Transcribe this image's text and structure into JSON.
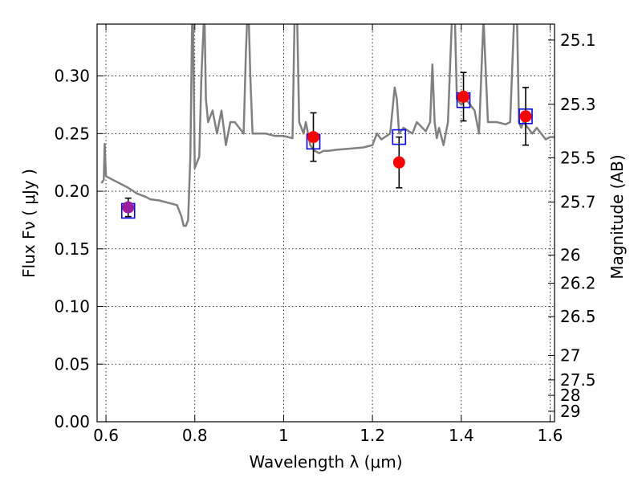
{
  "chart_data": {
    "type": "scatter",
    "xlabel": "Wavelength  λ (μm)",
    "ylabel": "Flux  Fν  ( μJy )",
    "y2label": "Magnitude (AB)",
    "xlim": [
      0.58,
      1.61
    ],
    "ylim": [
      0.0,
      0.345
    ],
    "grid": true,
    "x_ticks": [
      {
        "value": 0.6,
        "label": "0.6"
      },
      {
        "value": 0.8,
        "label": "0.8"
      },
      {
        "value": 1.0,
        "label": "1"
      },
      {
        "value": 1.2,
        "label": "1.2"
      },
      {
        "value": 1.4,
        "label": "1.4"
      },
      {
        "value": 1.6,
        "label": "1.6"
      }
    ],
    "y_ticks": [
      {
        "value": 0.0,
        "label": "0.00"
      },
      {
        "value": 0.05,
        "label": "0.05"
      },
      {
        "value": 0.1,
        "label": "0.10"
      },
      {
        "value": 0.15,
        "label": "0.15"
      },
      {
        "value": 0.2,
        "label": "0.20"
      },
      {
        "value": 0.25,
        "label": "0.25"
      },
      {
        "value": 0.3,
        "label": "0.30"
      }
    ],
    "y2_ticks": [
      {
        "value": 25.1,
        "label": "25.1"
      },
      {
        "value": 25.3,
        "label": "25.3"
      },
      {
        "value": 25.5,
        "label": "25.5"
      },
      {
        "value": 25.7,
        "label": "25.7"
      },
      {
        "value": 26.0,
        "label": "26"
      },
      {
        "value": 26.2,
        "label": "26.2"
      },
      {
        "value": 26.5,
        "label": "26.5"
      },
      {
        "value": 27.0,
        "label": "27"
      },
      {
        "value": 27.5,
        "label": "27.5"
      },
      {
        "value": 28.0,
        "label": "28"
      },
      {
        "value": 29.0,
        "label": "29"
      }
    ],
    "magnitude_zero_point_ujy": 3631000000,
    "series": [
      {
        "kind": "spectrum-line",
        "color": "#808080",
        "x": [
          0.59,
          0.595,
          0.597,
          0.6,
          0.61,
          0.63,
          0.65,
          0.67,
          0.69,
          0.7,
          0.72,
          0.74,
          0.76,
          0.77,
          0.775,
          0.78,
          0.785,
          0.79,
          0.795,
          0.8,
          0.8,
          0.81,
          0.815,
          0.82,
          0.822,
          0.825,
          0.83,
          0.84,
          0.85,
          0.86,
          0.87,
          0.88,
          0.89,
          0.9,
          0.91,
          0.915,
          0.92,
          0.925,
          0.93,
          0.94,
          0.96,
          0.98,
          1.0,
          1.02,
          1.025,
          1.03,
          1.035,
          1.045,
          1.05,
          1.06,
          1.07,
          1.08,
          1.09,
          1.1,
          1.12,
          1.15,
          1.18,
          1.2,
          1.21,
          1.22,
          1.24,
          1.25,
          1.255,
          1.26,
          1.27,
          1.29,
          1.3,
          1.32,
          1.33,
          1.335,
          1.34,
          1.345,
          1.35,
          1.36,
          1.37,
          1.38,
          1.385,
          1.39,
          1.4,
          1.41,
          1.42,
          1.43,
          1.44,
          1.45,
          1.46,
          1.48,
          1.5,
          1.51,
          1.52,
          1.525,
          1.53,
          1.535,
          1.54,
          1.55,
          1.56,
          1.57,
          1.58,
          1.59,
          1.6,
          1.61
        ],
        "y": [
          0.207,
          0.21,
          0.241,
          0.213,
          0.211,
          0.207,
          0.203,
          0.198,
          0.195,
          0.193,
          0.192,
          0.19,
          0.188,
          0.178,
          0.17,
          0.17,
          0.175,
          0.23,
          0.38,
          0.22,
          0.22,
          0.23,
          0.3,
          0.345,
          0.35,
          0.28,
          0.26,
          0.27,
          0.25,
          0.27,
          0.24,
          0.26,
          0.26,
          0.255,
          0.25,
          0.32,
          0.37,
          0.3,
          0.25,
          0.25,
          0.25,
          0.248,
          0.248,
          0.246,
          0.36,
          0.36,
          0.26,
          0.25,
          0.26,
          0.24,
          0.235,
          0.233,
          0.235,
          0.235,
          0.236,
          0.237,
          0.238,
          0.24,
          0.25,
          0.245,
          0.25,
          0.29,
          0.28,
          0.25,
          0.255,
          0.25,
          0.26,
          0.252,
          0.26,
          0.31,
          0.26,
          0.246,
          0.255,
          0.24,
          0.26,
          0.36,
          0.36,
          0.28,
          0.275,
          0.28,
          0.275,
          0.27,
          0.25,
          0.35,
          0.26,
          0.26,
          0.258,
          0.26,
          0.36,
          0.36,
          0.26,
          0.255,
          0.26,
          0.255,
          0.25,
          0.255,
          0.25,
          0.245,
          0.247,
          0.247
        ]
      },
      {
        "kind": "model-squares",
        "color": "#0000ff",
        "x": [
          0.65,
          1.067,
          1.26,
          1.405,
          1.545
        ],
        "y": [
          0.183,
          0.243,
          0.247,
          0.279,
          0.265
        ]
      },
      {
        "kind": "observed-points",
        "color": "#ff0000",
        "x": [
          0.65,
          1.067,
          1.26,
          1.405,
          1.545
        ],
        "y": [
          0.186,
          0.247,
          0.225,
          0.282,
          0.265
        ],
        "yerr": [
          0.008,
          0.021,
          0.022,
          0.021,
          0.025
        ],
        "point_colors": [
          "#9c1c9c",
          "#ff0000",
          "#ff0000",
          "#ff0000",
          "#ff0000"
        ]
      }
    ]
  }
}
